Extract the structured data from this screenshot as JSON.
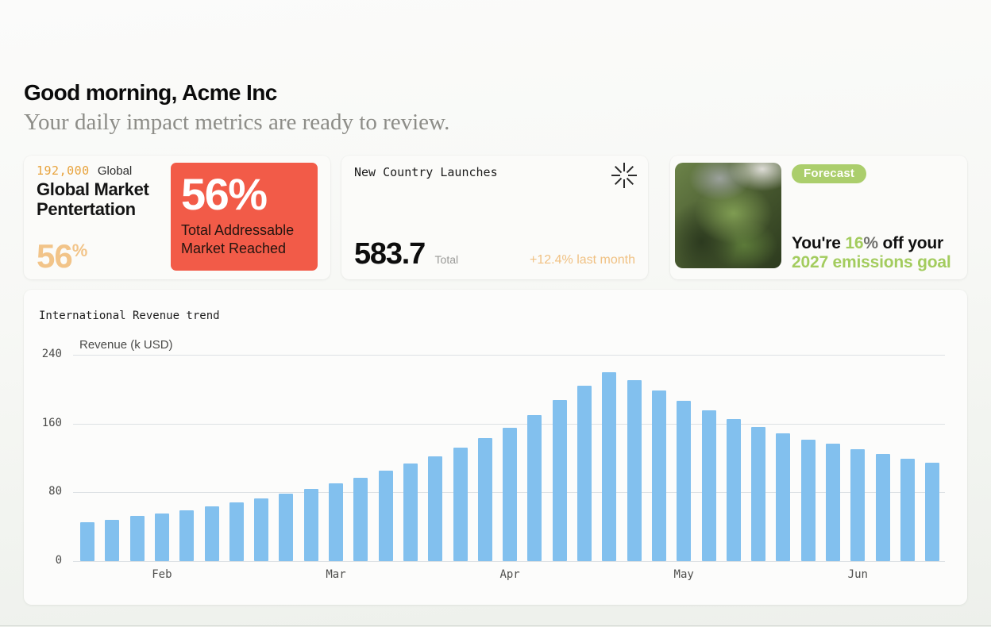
{
  "header": {
    "greeting": "Good morning, Acme Inc",
    "subtitle": "Your daily impact metrics are ready to review."
  },
  "cards": {
    "market": {
      "stat_value": "192,000",
      "stat_label": "Global",
      "title": "Global Market Pentertation",
      "corner_value": "56",
      "corner_unit": "%",
      "highlight_value": "56%",
      "highlight_caption": "Total Addressable Market Reached",
      "highlight_bg": "#f25b48",
      "accent_amber": "#e8a33c",
      "accent_amber_light": "#f2c489"
    },
    "launches": {
      "title": "New Country Launches",
      "icon": "asterisk-icon",
      "value": "583.7",
      "value_label": "Total",
      "delta": "+12.4% last month",
      "delta_color": "#f0c183"
    },
    "forecast": {
      "badge": "Forecast",
      "image": "moss-photo",
      "line1_prefix": "You're ",
      "line1_highlight": "16",
      "line1_percent": "%",
      "line1_suffix": " off your",
      "line2": "2027 emissions goal",
      "accent_green": "#a3cc5e",
      "badge_bg": "#abce6c"
    }
  },
  "chart_data": {
    "type": "bar",
    "title": "International Revenue trend",
    "ylabel": "Revenue (k USD)",
    "x_unit": "week",
    "categories_note": "weekly bars, month tick shown every 7th bar",
    "month_labels": [
      "Feb",
      "Mar",
      "Apr",
      "May",
      "Jun"
    ],
    "month_label_indices": [
      3,
      10,
      17,
      24,
      31
    ],
    "values": [
      45,
      48,
      52,
      55,
      59,
      63,
      68,
      73,
      78,
      84,
      90,
      97,
      105,
      113,
      122,
      132,
      143,
      155,
      170,
      187,
      204,
      220,
      210,
      198,
      186,
      175,
      165,
      156,
      148,
      141,
      136,
      130,
      124,
      119,
      114
    ],
    "yticks": [
      0,
      80,
      160,
      240
    ],
    "ylim": [
      0,
      240
    ],
    "grid": true,
    "legend": false,
    "bar_color": "#82c0ee"
  }
}
